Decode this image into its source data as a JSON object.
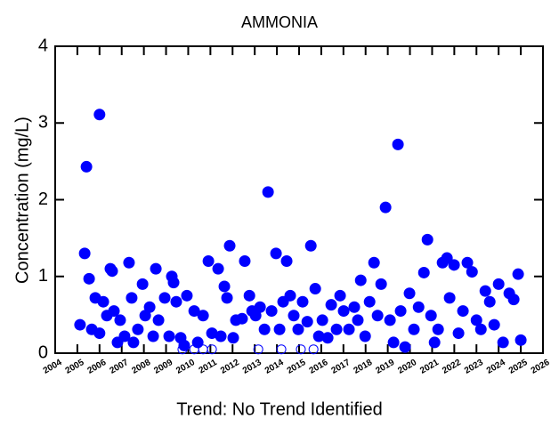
{
  "chart_data": {
    "type": "scatter",
    "title": "AMMONIA",
    "y_label": "Concentration (mg/L)",
    "caption": "Trend: No Trend Identified",
    "xlim": [
      2004,
      2026
    ],
    "xticks": [
      2004,
      2005,
      2006,
      2007,
      2008,
      2009,
      2010,
      2011,
      2012,
      2013,
      2014,
      2015,
      2016,
      2017,
      2018,
      2019,
      2020,
      2021,
      2022,
      2023,
      2024,
      2025,
      2026
    ],
    "ylim": [
      0,
      4
    ],
    "yticks": [
      0,
      1,
      2,
      3,
      4
    ],
    "grid": false,
    "series": [
      {
        "color": "#0000ff",
        "marker": "filled",
        "x": [
          2005.12,
          2005.33,
          2005.41,
          2005.53,
          2005.65,
          2005.81,
          2006.0,
          2006.0,
          2006.17,
          2006.33,
          2006.49,
          2006.57,
          2006.65,
          2006.81,
          2006.93,
          2007.13,
          2007.33,
          2007.45,
          2007.53,
          2007.73,
          2007.94,
          2008.06,
          2008.26,
          2008.42,
          2008.54,
          2008.66,
          2008.94,
          2009.14,
          2009.26,
          2009.34,
          2009.46,
          2009.66,
          2009.82,
          2009.94,
          2010.27,
          2010.43,
          2010.67,
          2010.91,
          2011.07,
          2011.35,
          2011.47,
          2011.63,
          2011.75,
          2011.87,
          2012.03,
          2012.15,
          2012.43,
          2012.55,
          2012.76,
          2012.88,
          2013.04,
          2013.24,
          2013.44,
          2013.6,
          2013.76,
          2013.96,
          2014.12,
          2014.28,
          2014.44,
          2014.6,
          2014.76,
          2014.96,
          2015.16,
          2015.37,
          2015.53,
          2015.73,
          2015.89,
          2016.05,
          2016.29,
          2016.45,
          2016.69,
          2016.85,
          2017.01,
          2017.25,
          2017.49,
          2017.65,
          2017.78,
          2017.98,
          2018.18,
          2018.38,
          2018.54,
          2018.7,
          2018.9,
          2019.1,
          2019.26,
          2019.46,
          2019.58,
          2019.78,
          2019.98,
          2020.18,
          2020.39,
          2020.63,
          2020.79,
          2020.95,
          2021.11,
          2021.27,
          2021.47,
          2021.67,
          2021.79,
          2021.99,
          2022.19,
          2022.39,
          2022.59,
          2022.8,
          2023.0,
          2023.2,
          2023.4,
          2023.6,
          2023.8,
          2024.0,
          2024.2,
          2024.48,
          2024.68,
          2024.88,
          2025.0
        ],
        "values": [
          0.37,
          1.3,
          2.43,
          0.97,
          0.31,
          0.72,
          3.11,
          0.26,
          0.67,
          0.49,
          1.1,
          1.07,
          0.55,
          0.14,
          0.43,
          0.22,
          1.18,
          0.72,
          0.14,
          0.31,
          0.9,
          0.49,
          0.6,
          0.22,
          1.1,
          0.43,
          0.72,
          0.22,
          1.0,
          0.92,
          0.67,
          0.2,
          0.1,
          0.75,
          0.55,
          0.14,
          0.49,
          1.2,
          0.26,
          1.1,
          0.22,
          0.87,
          0.72,
          1.4,
          0.2,
          0.43,
          0.45,
          1.2,
          0.75,
          0.55,
          0.49,
          0.6,
          0.31,
          2.1,
          0.55,
          1.3,
          0.31,
          0.67,
          1.2,
          0.75,
          0.49,
          0.31,
          0.67,
          0.41,
          1.4,
          0.84,
          0.22,
          0.43,
          0.2,
          0.63,
          0.31,
          0.75,
          0.55,
          0.31,
          0.6,
          0.43,
          0.95,
          0.22,
          0.67,
          1.18,
          0.49,
          0.9,
          1.9,
          0.43,
          0.14,
          2.72,
          0.55,
          0.08,
          0.78,
          0.31,
          0.6,
          1.05,
          1.48,
          0.49,
          0.14,
          0.31,
          1.18,
          1.24,
          0.72,
          1.15,
          0.26,
          0.55,
          1.18,
          1.06,
          0.43,
          0.31,
          0.81,
          0.67,
          0.37,
          0.9,
          0.14,
          0.78,
          0.7,
          1.03,
          0.17
        ]
      },
      {
        "color": "#0000ff",
        "marker": "open",
        "x": [
          2009.74,
          2010.27,
          2010.67,
          2011.07,
          2013.16,
          2014.2,
          2015.08,
          2015.65
        ],
        "values": [
          0.05,
          0.05,
          0.05,
          0.05,
          0.05,
          0.05,
          0.05,
          0.05
        ]
      }
    ]
  }
}
